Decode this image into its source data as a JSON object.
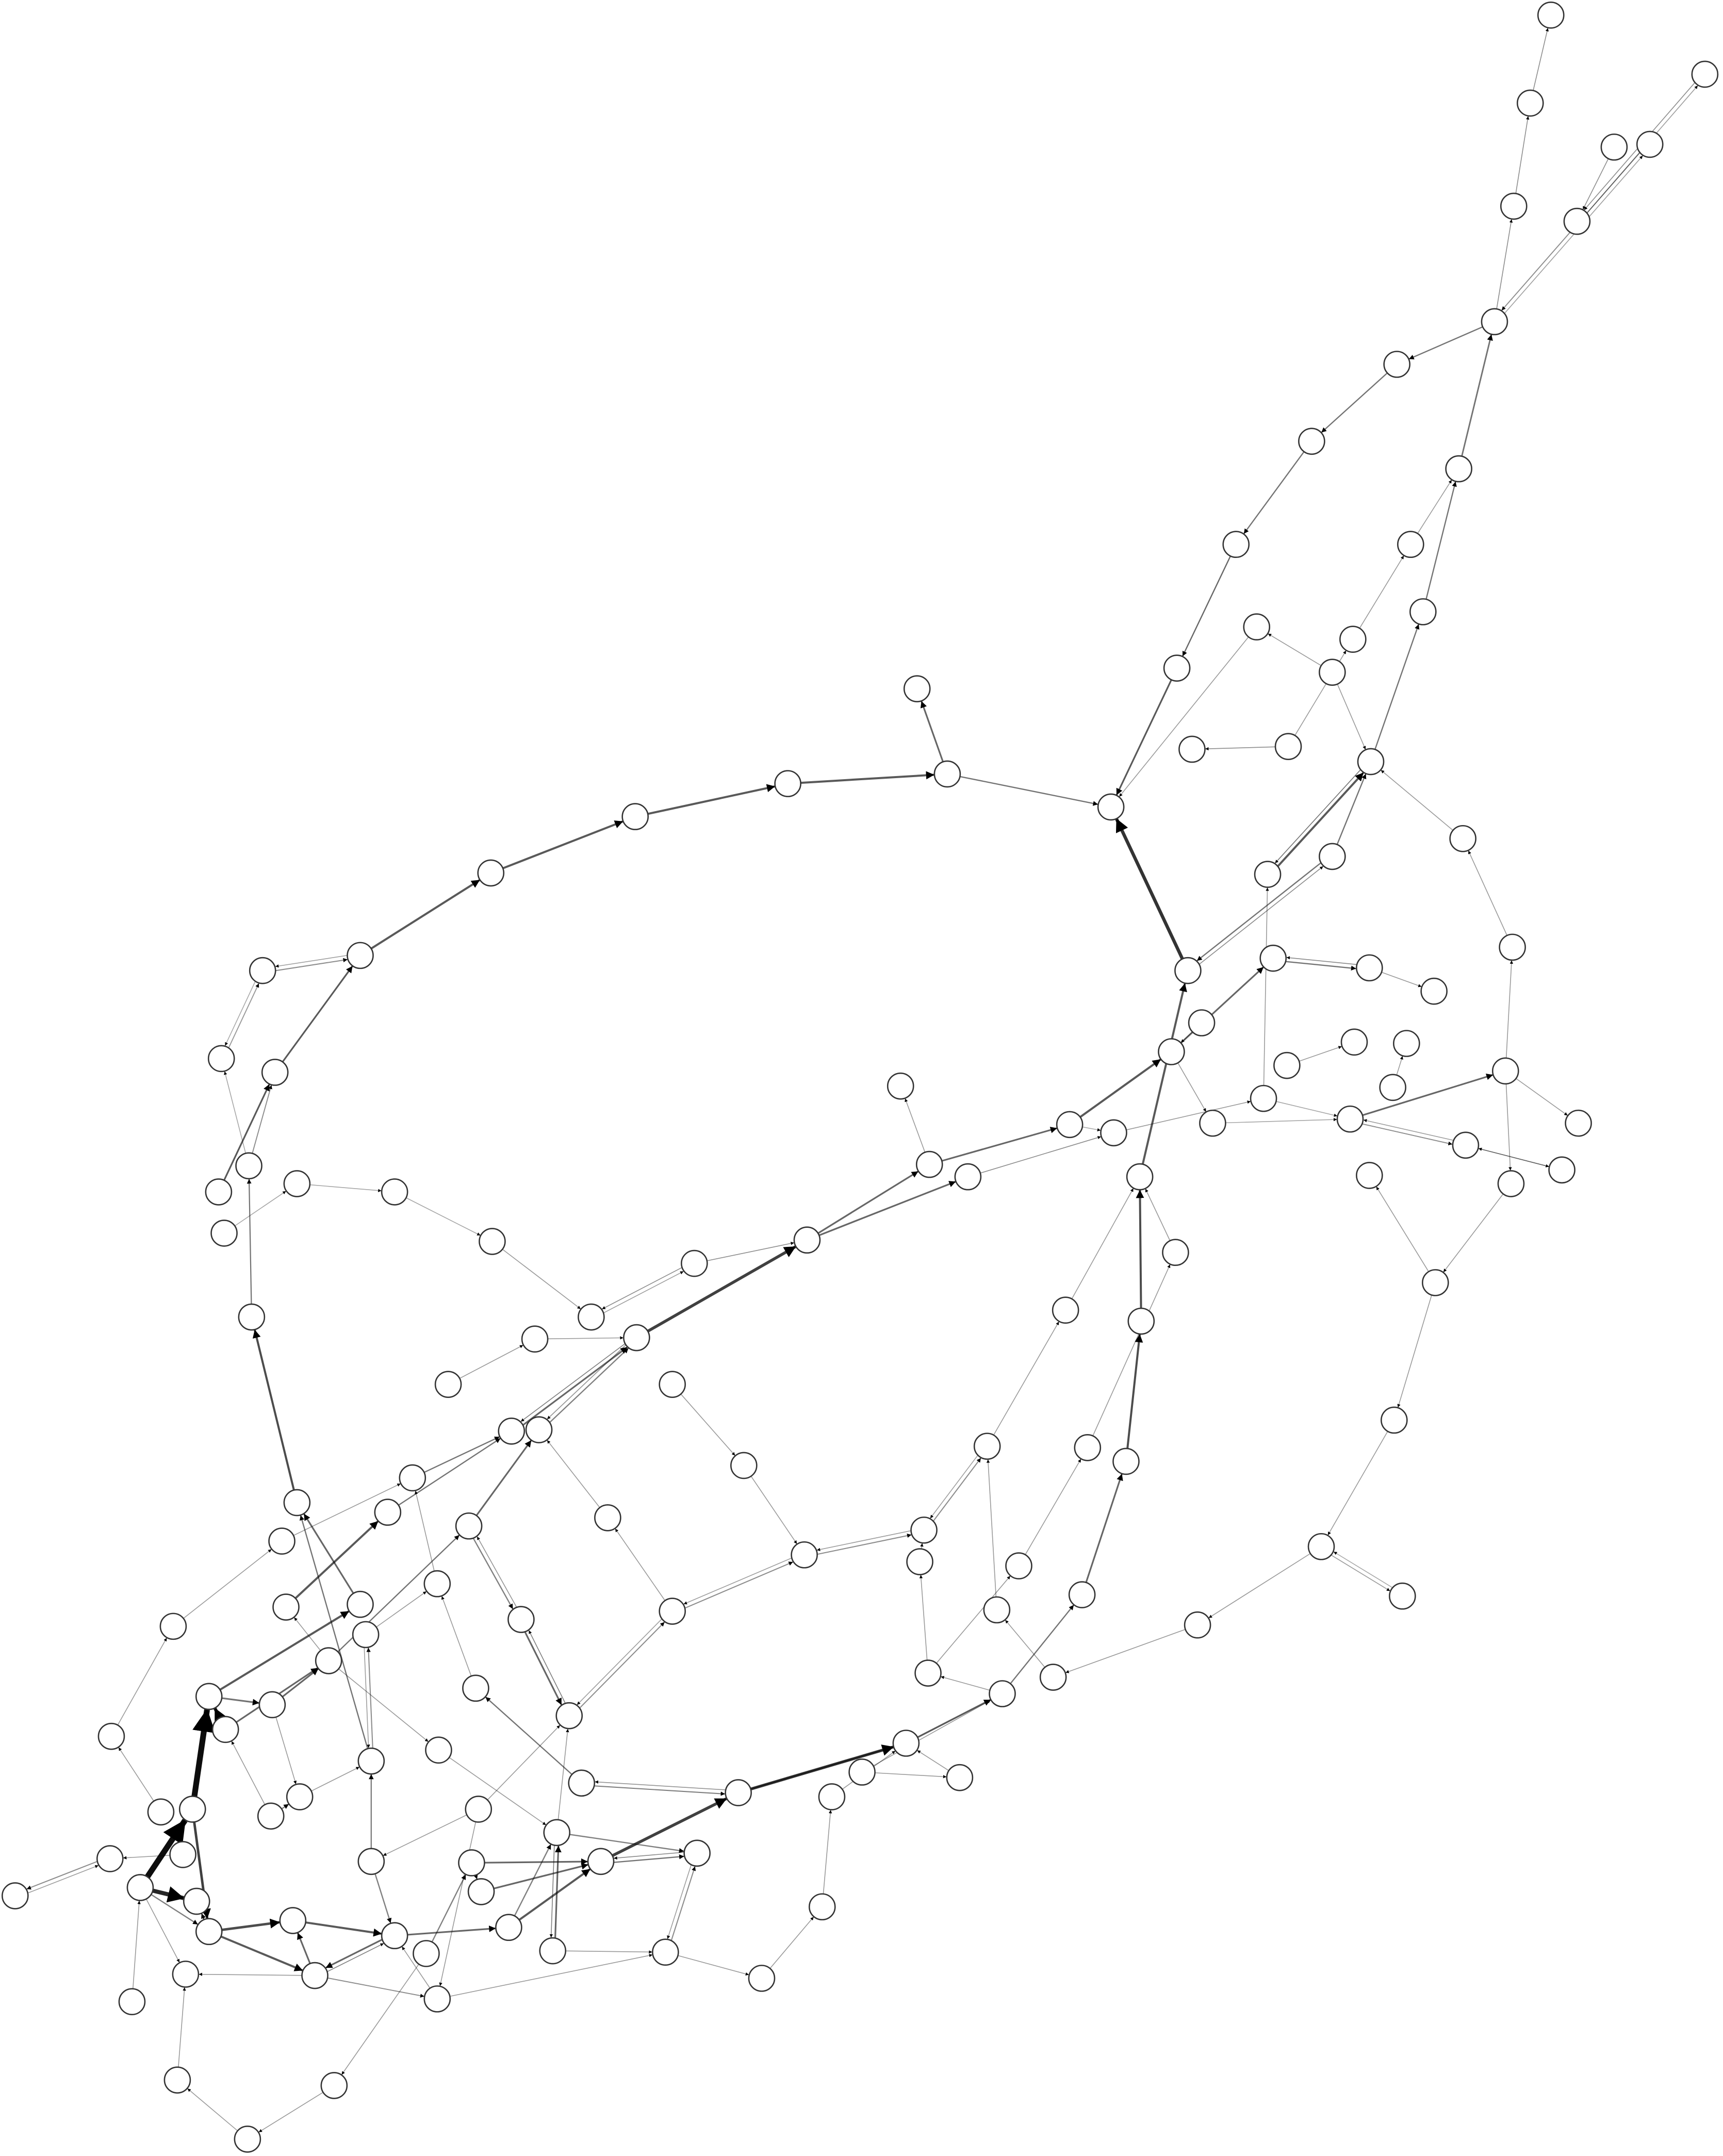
{
  "diagram": {
    "type": "directed-network-graph",
    "node_fill_default": "#ffffff",
    "node_stroke": "#333333",
    "colors": {
      "start": "#1a8fe3",
      "target": "#1e8f47",
      "danger": "#e05a3f"
    },
    "edge_color": "#000000",
    "labels": []
  }
}
